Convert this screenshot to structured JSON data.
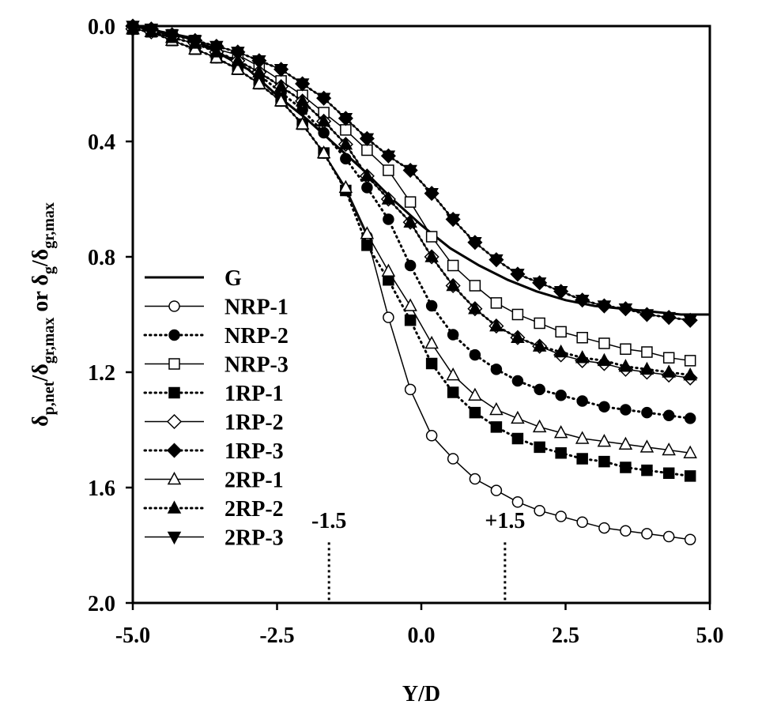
{
  "chart_data": {
    "type": "line",
    "xlabel": "Y/D",
    "ylabel": {
      "parts": [
        {
          "t": "δ",
          "s": "n"
        },
        {
          "t": "p,net",
          "s": "sub"
        },
        {
          "t": "/δ",
          "s": "n"
        },
        {
          "t": "gr,max",
          "s": "sub"
        },
        {
          "t": " or δ",
          "s": "n"
        },
        {
          "t": "g",
          "s": "sub"
        },
        {
          "t": "/δ",
          "s": "n"
        },
        {
          "t": "gr,max",
          "s": "sub"
        }
      ]
    },
    "xlim": [
      -5.0,
      5.0
    ],
    "ylim": [
      0.0,
      2.0
    ],
    "y_inverted": true,
    "xticks": [
      -5.0,
      -2.5,
      0.0,
      2.5,
      5.0
    ],
    "xtick_labels": [
      "-5.0",
      "-2.5",
      "0.0",
      "2.5",
      "5.0"
    ],
    "yticks": [
      0.0,
      0.4,
      0.8,
      1.2,
      1.6,
      2.0
    ],
    "ytick_labels": [
      "0.0",
      "0.4",
      "0.8",
      "1.2",
      "1.6",
      "2.0"
    ],
    "grid": false,
    "legend_position": "bottom-left",
    "annotations": [
      {
        "text": "-1.5",
        "x": -1.6,
        "y_text": 1.74,
        "line_from": 1.79,
        "line_to": 2.0
      },
      {
        "text": "+1.5",
        "x": 1.45,
        "y_text": 1.74,
        "line_from": 1.79,
        "line_to": 2.0
      }
    ],
    "series": [
      {
        "name": "G",
        "line": "solid",
        "marker": "none",
        "x": [
          -5.0,
          -4.0,
          -3.0,
          -2.5,
          -2.0,
          -1.5,
          -1.0,
          -0.5,
          0.0,
          0.5,
          1.0,
          1.5,
          2.0,
          2.5,
          3.0,
          3.5,
          4.0,
          4.5,
          5.0
        ],
        "y": [
          0.0,
          0.04,
          0.15,
          0.24,
          0.32,
          0.41,
          0.5,
          0.6,
          0.69,
          0.77,
          0.83,
          0.88,
          0.92,
          0.95,
          0.97,
          0.98,
          0.99,
          1.0,
          1.0
        ]
      },
      {
        "name": "NRP-1",
        "line": "solid",
        "marker": "circle-open",
        "x": [
          -5.0,
          -4.68,
          -4.32,
          -3.92,
          -3.55,
          -3.18,
          -2.81,
          -2.43,
          -2.06,
          -1.69,
          -1.31,
          -0.94,
          -0.57,
          -0.19,
          0.18,
          0.55,
          0.93,
          1.3,
          1.67,
          2.05,
          2.42,
          2.79,
          3.17,
          3.54,
          3.91,
          4.29,
          4.66
        ],
        "y": [
          0.01,
          0.02,
          0.05,
          0.08,
          0.11,
          0.15,
          0.2,
          0.26,
          0.34,
          0.44,
          0.57,
          0.73,
          1.01,
          1.26,
          1.42,
          1.5,
          1.57,
          1.61,
          1.65,
          1.68,
          1.7,
          1.72,
          1.74,
          1.75,
          1.76,
          1.77,
          1.78
        ]
      },
      {
        "name": "NRP-2",
        "line": "dotted",
        "marker": "circle-filled",
        "x": [
          -5.0,
          -4.68,
          -4.32,
          -3.92,
          -3.55,
          -3.18,
          -2.81,
          -2.43,
          -2.06,
          -1.69,
          -1.31,
          -0.94,
          -0.57,
          -0.19,
          0.18,
          0.55,
          0.93,
          1.3,
          1.67,
          2.05,
          2.42,
          2.79,
          3.17,
          3.54,
          3.91,
          4.29,
          4.66
        ],
        "y": [
          0.01,
          0.02,
          0.04,
          0.06,
          0.09,
          0.13,
          0.17,
          0.23,
          0.29,
          0.37,
          0.46,
          0.56,
          0.67,
          0.83,
          0.97,
          1.07,
          1.14,
          1.19,
          1.23,
          1.26,
          1.28,
          1.3,
          1.32,
          1.33,
          1.34,
          1.35,
          1.36
        ]
      },
      {
        "name": "NRP-3",
        "line": "solid",
        "marker": "square-open",
        "x": [
          -5.0,
          -4.68,
          -4.32,
          -3.92,
          -3.55,
          -3.18,
          -2.81,
          -2.43,
          -2.06,
          -1.69,
          -1.31,
          -0.94,
          -0.57,
          -0.19,
          0.18,
          0.55,
          0.93,
          1.3,
          1.67,
          2.05,
          2.42,
          2.79,
          3.17,
          3.54,
          3.91,
          4.29,
          4.66
        ],
        "y": [
          0.01,
          0.02,
          0.03,
          0.05,
          0.08,
          0.1,
          0.14,
          0.19,
          0.24,
          0.3,
          0.36,
          0.43,
          0.5,
          0.61,
          0.73,
          0.83,
          0.9,
          0.96,
          1.0,
          1.03,
          1.06,
          1.08,
          1.1,
          1.12,
          1.13,
          1.15,
          1.16
        ]
      },
      {
        "name": "1RP-1",
        "line": "dotted",
        "marker": "square-filled",
        "x": [
          -5.0,
          -4.68,
          -4.32,
          -3.92,
          -3.55,
          -3.18,
          -2.81,
          -2.43,
          -2.06,
          -1.69,
          -1.31,
          -0.94,
          -0.57,
          -0.19,
          0.18,
          0.55,
          0.93,
          1.3,
          1.67,
          2.05,
          2.42,
          2.79,
          3.17,
          3.54,
          3.91,
          4.29,
          4.66
        ],
        "y": [
          0.01,
          0.02,
          0.05,
          0.08,
          0.11,
          0.15,
          0.2,
          0.26,
          0.34,
          0.44,
          0.57,
          0.76,
          0.88,
          1.02,
          1.17,
          1.27,
          1.34,
          1.39,
          1.43,
          1.46,
          1.48,
          1.5,
          1.51,
          1.53,
          1.54,
          1.55,
          1.56
        ]
      },
      {
        "name": "1RP-2",
        "line": "solid",
        "marker": "diamond-open",
        "x": [
          -5.0,
          -4.68,
          -4.32,
          -3.92,
          -3.55,
          -3.18,
          -2.81,
          -2.43,
          -2.06,
          -1.69,
          -1.31,
          -0.94,
          -0.57,
          -0.19,
          0.18,
          0.55,
          0.93,
          1.3,
          1.67,
          2.05,
          2.42,
          2.79,
          3.17,
          3.54,
          3.91,
          4.29,
          4.66
        ],
        "y": [
          0.01,
          0.02,
          0.04,
          0.06,
          0.09,
          0.12,
          0.16,
          0.21,
          0.26,
          0.33,
          0.41,
          0.52,
          0.6,
          0.68,
          0.8,
          0.9,
          0.98,
          1.04,
          1.08,
          1.11,
          1.14,
          1.16,
          1.17,
          1.19,
          1.2,
          1.21,
          1.22
        ]
      },
      {
        "name": "1RP-3",
        "line": "dotted",
        "marker": "diamond-filled",
        "x": [
          -5.0,
          -4.68,
          -4.32,
          -3.92,
          -3.55,
          -3.18,
          -2.81,
          -2.43,
          -2.06,
          -1.69,
          -1.31,
          -0.94,
          -0.57,
          -0.19,
          0.18,
          0.55,
          0.93,
          1.3,
          1.67,
          2.05,
          2.42,
          2.79,
          3.17,
          3.54,
          3.91,
          4.29,
          4.66
        ],
        "y": [
          0.0,
          0.01,
          0.03,
          0.05,
          0.07,
          0.09,
          0.12,
          0.15,
          0.2,
          0.25,
          0.32,
          0.39,
          0.45,
          0.5,
          0.58,
          0.67,
          0.75,
          0.81,
          0.86,
          0.89,
          0.92,
          0.95,
          0.97,
          0.98,
          1.0,
          1.01,
          1.02
        ]
      },
      {
        "name": "2RP-1",
        "line": "solid",
        "marker": "triangle-up-open",
        "x": [
          -5.0,
          -4.68,
          -4.32,
          -3.92,
          -3.55,
          -3.18,
          -2.81,
          -2.43,
          -2.06,
          -1.69,
          -1.31,
          -0.94,
          -0.57,
          -0.19,
          0.18,
          0.55,
          0.93,
          1.3,
          1.67,
          2.05,
          2.42,
          2.79,
          3.17,
          3.54,
          3.91,
          4.29,
          4.66
        ],
        "y": [
          0.01,
          0.02,
          0.05,
          0.08,
          0.11,
          0.15,
          0.2,
          0.26,
          0.34,
          0.44,
          0.56,
          0.72,
          0.85,
          0.97,
          1.1,
          1.21,
          1.28,
          1.33,
          1.36,
          1.39,
          1.41,
          1.43,
          1.44,
          1.45,
          1.46,
          1.47,
          1.48
        ]
      },
      {
        "name": "2RP-2",
        "line": "dotted",
        "marker": "triangle-up-filled",
        "x": [
          -5.0,
          -4.68,
          -4.32,
          -3.92,
          -3.55,
          -3.18,
          -2.81,
          -2.43,
          -2.06,
          -1.69,
          -1.31,
          -0.94,
          -0.57,
          -0.19,
          0.18,
          0.55,
          0.93,
          1.3,
          1.67,
          2.05,
          2.42,
          2.79,
          3.17,
          3.54,
          3.91,
          4.29,
          4.66
        ],
        "y": [
          0.01,
          0.02,
          0.04,
          0.06,
          0.09,
          0.12,
          0.16,
          0.21,
          0.26,
          0.33,
          0.41,
          0.52,
          0.6,
          0.68,
          0.8,
          0.9,
          0.98,
          1.04,
          1.08,
          1.11,
          1.13,
          1.15,
          1.16,
          1.18,
          1.19,
          1.2,
          1.21
        ]
      },
      {
        "name": "2RP-3",
        "line": "solid",
        "marker": "triangle-down-filled",
        "x": [
          -5.0,
          -4.68,
          -4.32,
          -3.92,
          -3.55,
          -3.18,
          -2.81,
          -2.43,
          -2.06,
          -1.69,
          -1.31,
          -0.94,
          -0.57,
          -0.19,
          0.18,
          0.55,
          0.93,
          1.3,
          1.67,
          2.05,
          2.42,
          2.79,
          3.17,
          3.54,
          3.91,
          4.29,
          4.66
        ],
        "y": [
          0.0,
          0.01,
          0.03,
          0.05,
          0.07,
          0.09,
          0.12,
          0.15,
          0.2,
          0.25,
          0.32,
          0.39,
          0.45,
          0.5,
          0.58,
          0.67,
          0.75,
          0.81,
          0.86,
          0.89,
          0.92,
          0.95,
          0.97,
          0.98,
          1.0,
          1.01,
          1.02
        ]
      }
    ]
  }
}
